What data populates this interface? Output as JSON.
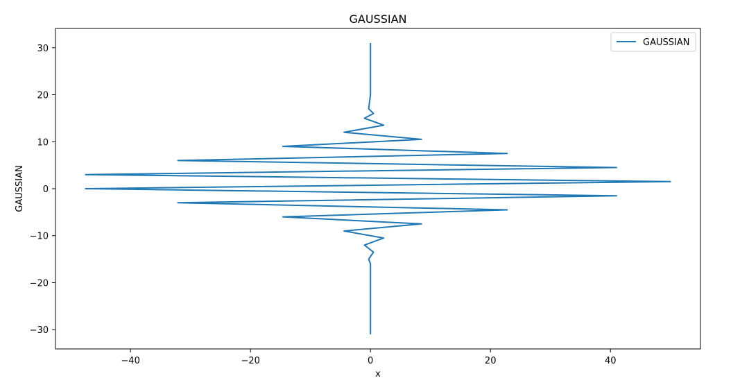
{
  "chart_data": {
    "type": "line",
    "title": "GAUSSIAN",
    "xlabel": "x",
    "ylabel": "GAUSSIAN",
    "xlim": [
      -52.5,
      55.0
    ],
    "ylim": [
      -34.1,
      34.1
    ],
    "xticks": [
      -40,
      -20,
      0,
      20,
      40
    ],
    "yticks": [
      -30,
      -20,
      -10,
      0,
      10,
      20,
      30
    ],
    "xtick_labels": [
      "−40",
      "−20",
      "0",
      "20",
      "40"
    ],
    "ytick_labels": [
      "−30",
      "−20",
      "−10",
      "0",
      "10",
      "20",
      "30"
    ],
    "grid": false,
    "legend": {
      "placement": "upper-right",
      "entries": [
        "GAUSSIAN"
      ]
    },
    "series": [
      {
        "name": "GAUSSIAN",
        "color": "#1f77b4",
        "x": [
          0,
          0,
          0,
          0,
          -0.3,
          0.5,
          -1.0,
          2.2,
          -4.4,
          8.5,
          -14.6,
          22.8,
          -32.1,
          41.0,
          -47.5,
          50.0,
          -47.5,
          41.0,
          -32.1,
          22.8,
          -14.6,
          8.5,
          -4.4,
          2.2,
          -1.0,
          0.5,
          -0.3,
          0,
          0,
          0
        ],
        "y": [
          -31.0,
          -25.0,
          -20.0,
          -16.0,
          -15.0,
          -13.5,
          -12.0,
          -10.5,
          -9.0,
          -7.5,
          -6.0,
          -4.5,
          -3.0,
          -1.5,
          0.0,
          1.5,
          3.0,
          4.5,
          6.0,
          7.5,
          9.0,
          10.5,
          12.0,
          13.5,
          15.0,
          16.0,
          17.0,
          20.0,
          25.0,
          31.0
        ]
      }
    ]
  }
}
